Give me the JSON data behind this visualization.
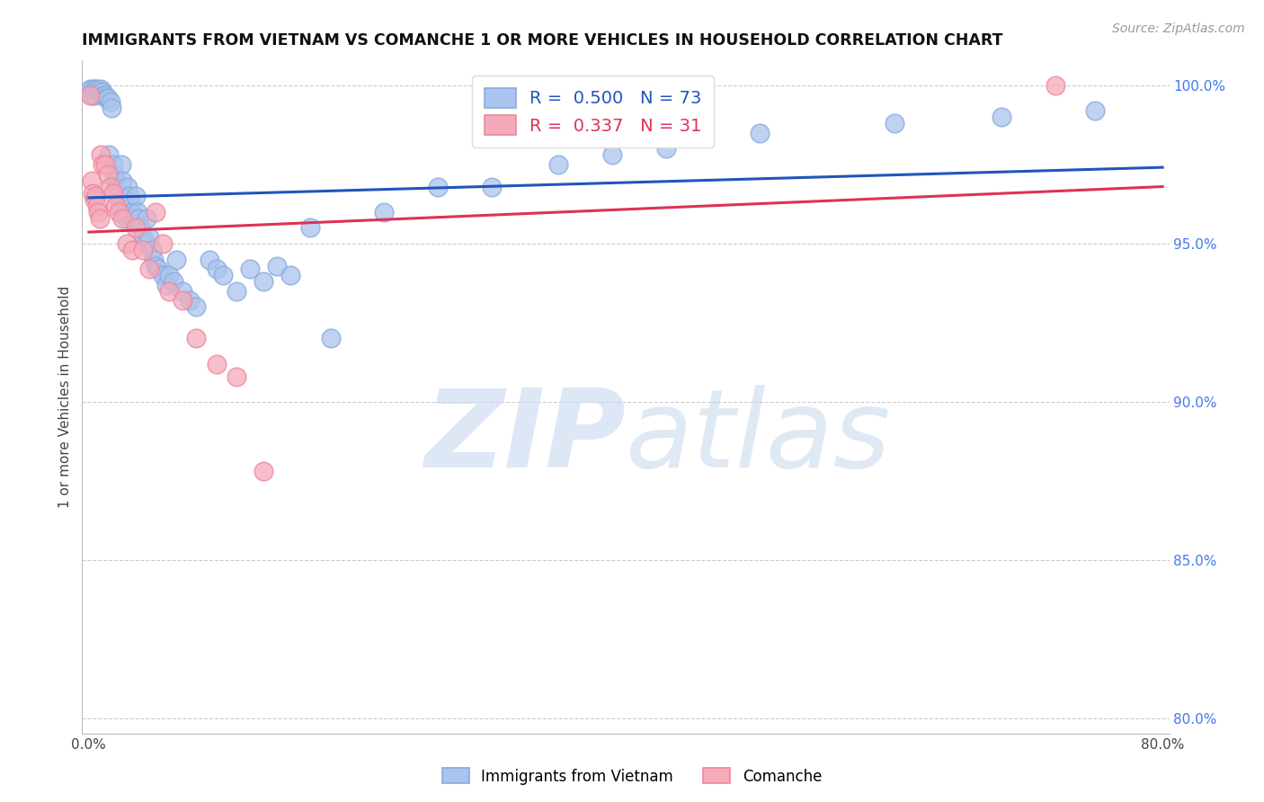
{
  "title": "IMMIGRANTS FROM VIETNAM VS COMANCHE 1 OR MORE VEHICLES IN HOUSEHOLD CORRELATION CHART",
  "source": "Source: ZipAtlas.com",
  "ylabel": "1 or more Vehicles in Household",
  "xlim": [
    -0.005,
    0.805
  ],
  "ylim": [
    0.795,
    1.008
  ],
  "x_ticks": [
    0.0,
    0.1,
    0.2,
    0.3,
    0.4,
    0.5,
    0.6,
    0.7,
    0.8
  ],
  "x_tick_labels": [
    "0.0%",
    "",
    "",
    "",
    "",
    "",
    "",
    "",
    "80.0%"
  ],
  "y_ticks_right": [
    1.0,
    0.95,
    0.9,
    0.85,
    0.8
  ],
  "y_tick_labels_right": [
    "100.0%",
    "95.0%",
    "90.0%",
    "85.0%",
    "80.0%"
  ],
  "grid_color": "#cccccc",
  "background_color": "#ffffff",
  "watermark_zip": "ZIP",
  "watermark_atlas": "atlas",
  "series": [
    {
      "label": "Immigrants from Vietnam",
      "R": 0.5,
      "N": 73,
      "color_fill": "#aac4ee",
      "color_edge": "#88aadd",
      "line_color": "#2255bb",
      "x": [
        0.001,
        0.002,
        0.003,
        0.004,
        0.005,
        0.006,
        0.007,
        0.008,
        0.009,
        0.01,
        0.011,
        0.012,
        0.013,
        0.014,
        0.015,
        0.016,
        0.017,
        0.018,
        0.019,
        0.02,
        0.021,
        0.022,
        0.023,
        0.024,
        0.025,
        0.026,
        0.027,
        0.028,
        0.029,
        0.03,
        0.031,
        0.032,
        0.033,
        0.035,
        0.036,
        0.037,
        0.038,
        0.04,
        0.042,
        0.043,
        0.045,
        0.047,
        0.048,
        0.05,
        0.052,
        0.055,
        0.058,
        0.06,
        0.063,
        0.065,
        0.07,
        0.075,
        0.08,
        0.09,
        0.095,
        0.1,
        0.11,
        0.12,
        0.13,
        0.14,
        0.15,
        0.165,
        0.18,
        0.22,
        0.26,
        0.3,
        0.35,
        0.39,
        0.43,
        0.5,
        0.6,
        0.68,
        0.75
      ],
      "y": [
        0.999,
        0.997,
        0.999,
        0.997,
        0.999,
        0.999,
        0.998,
        0.998,
        0.999,
        0.998,
        0.997,
        0.997,
        0.996,
        0.996,
        0.978,
        0.995,
        0.993,
        0.975,
        0.972,
        0.97,
        0.968,
        0.965,
        0.962,
        0.975,
        0.97,
        0.964,
        0.96,
        0.958,
        0.968,
        0.965,
        0.963,
        0.96,
        0.958,
        0.965,
        0.96,
        0.958,
        0.955,
        0.952,
        0.95,
        0.958,
        0.952,
        0.948,
        0.945,
        0.943,
        0.942,
        0.94,
        0.937,
        0.94,
        0.938,
        0.945,
        0.935,
        0.932,
        0.93,
        0.945,
        0.942,
        0.94,
        0.935,
        0.942,
        0.938,
        0.943,
        0.94,
        0.955,
        0.92,
        0.96,
        0.968,
        0.968,
        0.975,
        0.978,
        0.98,
        0.985,
        0.988,
        0.99,
        0.992
      ]
    },
    {
      "label": "Comanche",
      "R": 0.337,
      "N": 31,
      "color_fill": "#f5aabb",
      "color_edge": "#ee8899",
      "line_color": "#dd3355",
      "x": [
        0.001,
        0.002,
        0.003,
        0.004,
        0.005,
        0.006,
        0.007,
        0.008,
        0.009,
        0.01,
        0.012,
        0.014,
        0.016,
        0.018,
        0.02,
        0.022,
        0.025,
        0.028,
        0.032,
        0.035,
        0.04,
        0.045,
        0.05,
        0.055,
        0.06,
        0.07,
        0.08,
        0.095,
        0.11,
        0.13,
        0.72
      ],
      "y": [
        0.997,
        0.97,
        0.966,
        0.964,
        0.965,
        0.962,
        0.96,
        0.958,
        0.978,
        0.975,
        0.975,
        0.972,
        0.968,
        0.966,
        0.962,
        0.96,
        0.958,
        0.95,
        0.948,
        0.955,
        0.948,
        0.942,
        0.96,
        0.95,
        0.935,
        0.932,
        0.92,
        0.912,
        0.908,
        0.878,
        1.0
      ]
    }
  ]
}
